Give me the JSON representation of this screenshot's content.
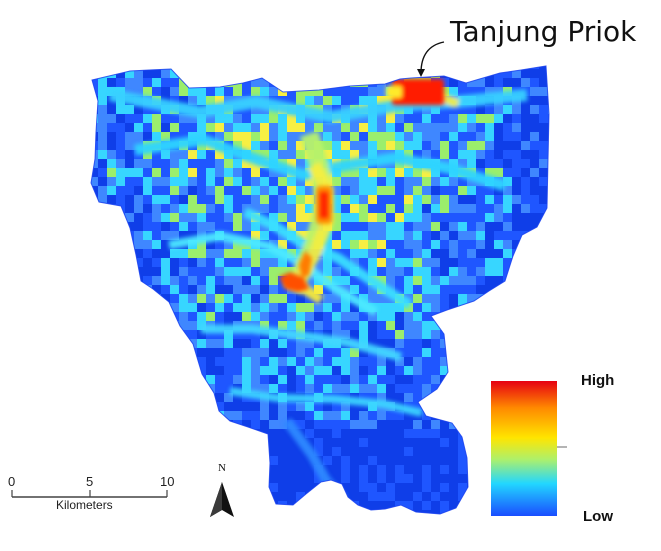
{
  "annotation": {
    "label": "Tanjung Priok"
  },
  "legend": {
    "high_label": "High",
    "low_label": "Low",
    "colors": [
      "#e60012",
      "#ff8a00",
      "#ffe500",
      "#aef06a",
      "#22d7ff",
      "#1a4dff"
    ]
  },
  "scale_bar": {
    "ticks": [
      "0",
      "5",
      "10"
    ],
    "unit_label": "Kilometers"
  },
  "north_arrow": {
    "label": "N",
    "icon": "north-arrow-icon"
  },
  "map_colors": {
    "background": "#1f56ff",
    "deep": "#0f3ee8",
    "mid": "#3f87ff",
    "cyan": "#37d6ff",
    "green": "#9bee6c",
    "yellow": "#f7ef43",
    "orange": "#ffa31a",
    "red": "#ff1f00"
  }
}
